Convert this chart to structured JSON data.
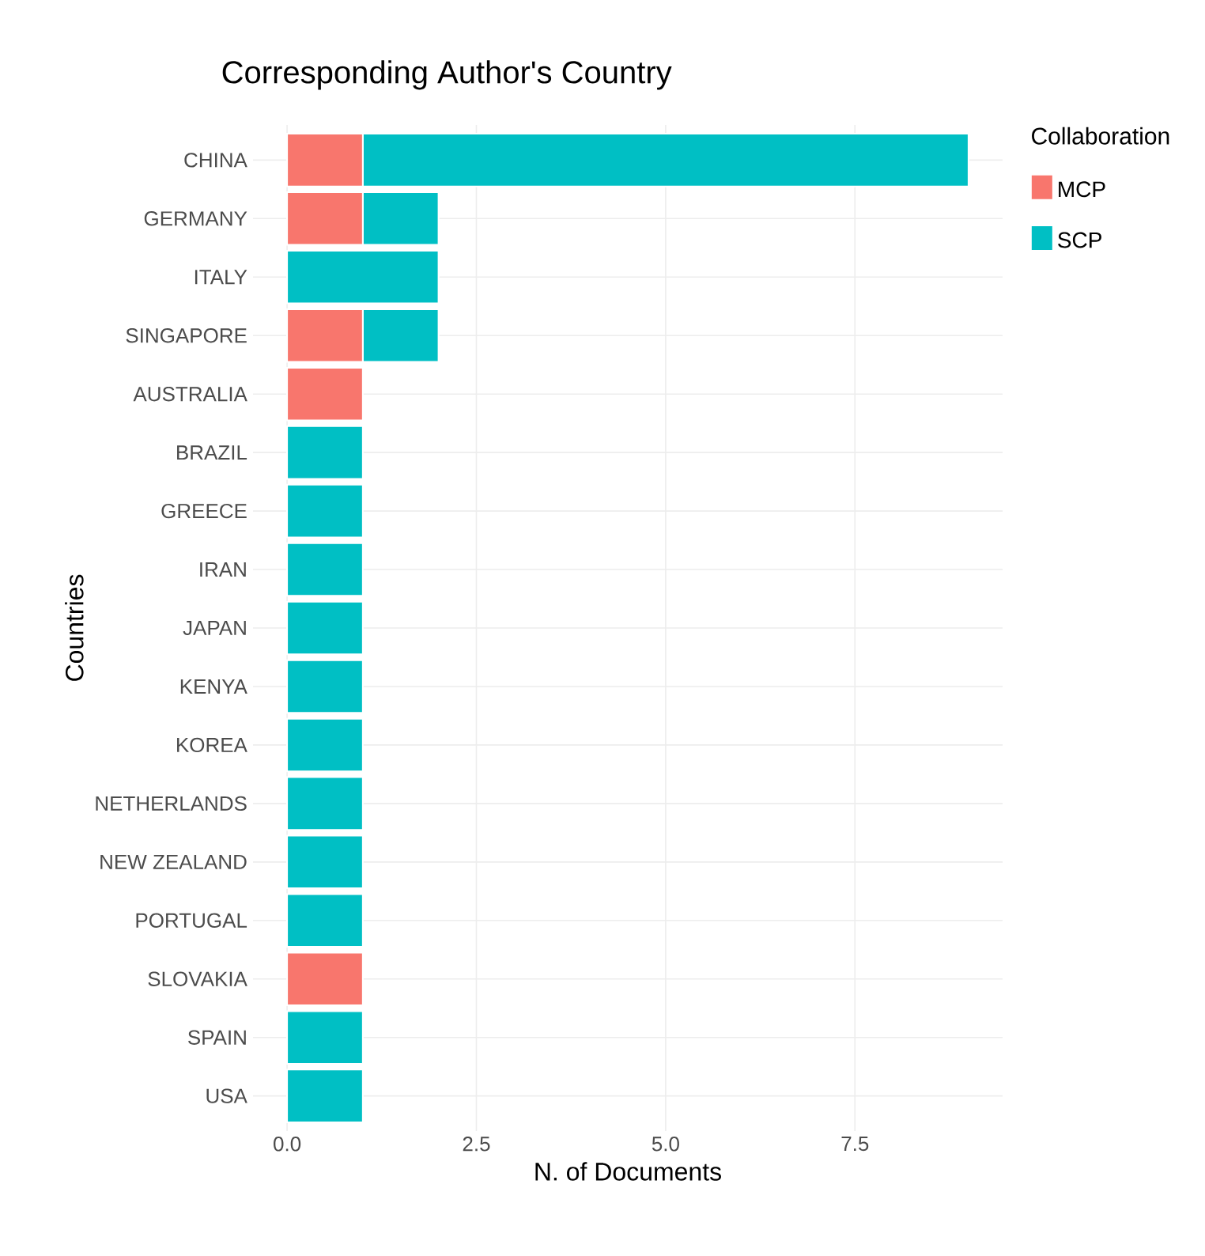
{
  "chart_data": {
    "type": "bar",
    "orientation": "horizontal",
    "stacked": true,
    "title": "Corresponding Author's Country",
    "xlabel": "N. of Documents",
    "ylabel": "Countries",
    "legend_title": "Collaboration",
    "legend": "right",
    "grid": true,
    "categories": [
      "CHINA",
      "GERMANY",
      "ITALY",
      "SINGAPORE",
      "AUSTRALIA",
      "BRAZIL",
      "GREECE",
      "IRAN",
      "JAPAN",
      "KENYA",
      "KOREA",
      "NETHERLANDS",
      "NEW ZEALAND",
      "PORTUGAL",
      "SLOVAKIA",
      "SPAIN",
      "USA"
    ],
    "series": [
      {
        "name": "MCP",
        "color": "#f8766d",
        "values": [
          1,
          1,
          0,
          1,
          1,
          0,
          0,
          0,
          0,
          0,
          0,
          0,
          0,
          0,
          1,
          0,
          0
        ]
      },
      {
        "name": "SCP",
        "color": "#00bfc4",
        "values": [
          8,
          1,
          2,
          1,
          0,
          1,
          1,
          1,
          1,
          1,
          1,
          1,
          1,
          1,
          0,
          1,
          1
        ]
      }
    ],
    "xlim": [
      -0.45,
      9.45
    ],
    "xticks": [
      {
        "value": 0,
        "label": "0.0"
      },
      2.5,
      {
        "value": 5,
        "label": "5.0"
      },
      7.5
    ]
  }
}
